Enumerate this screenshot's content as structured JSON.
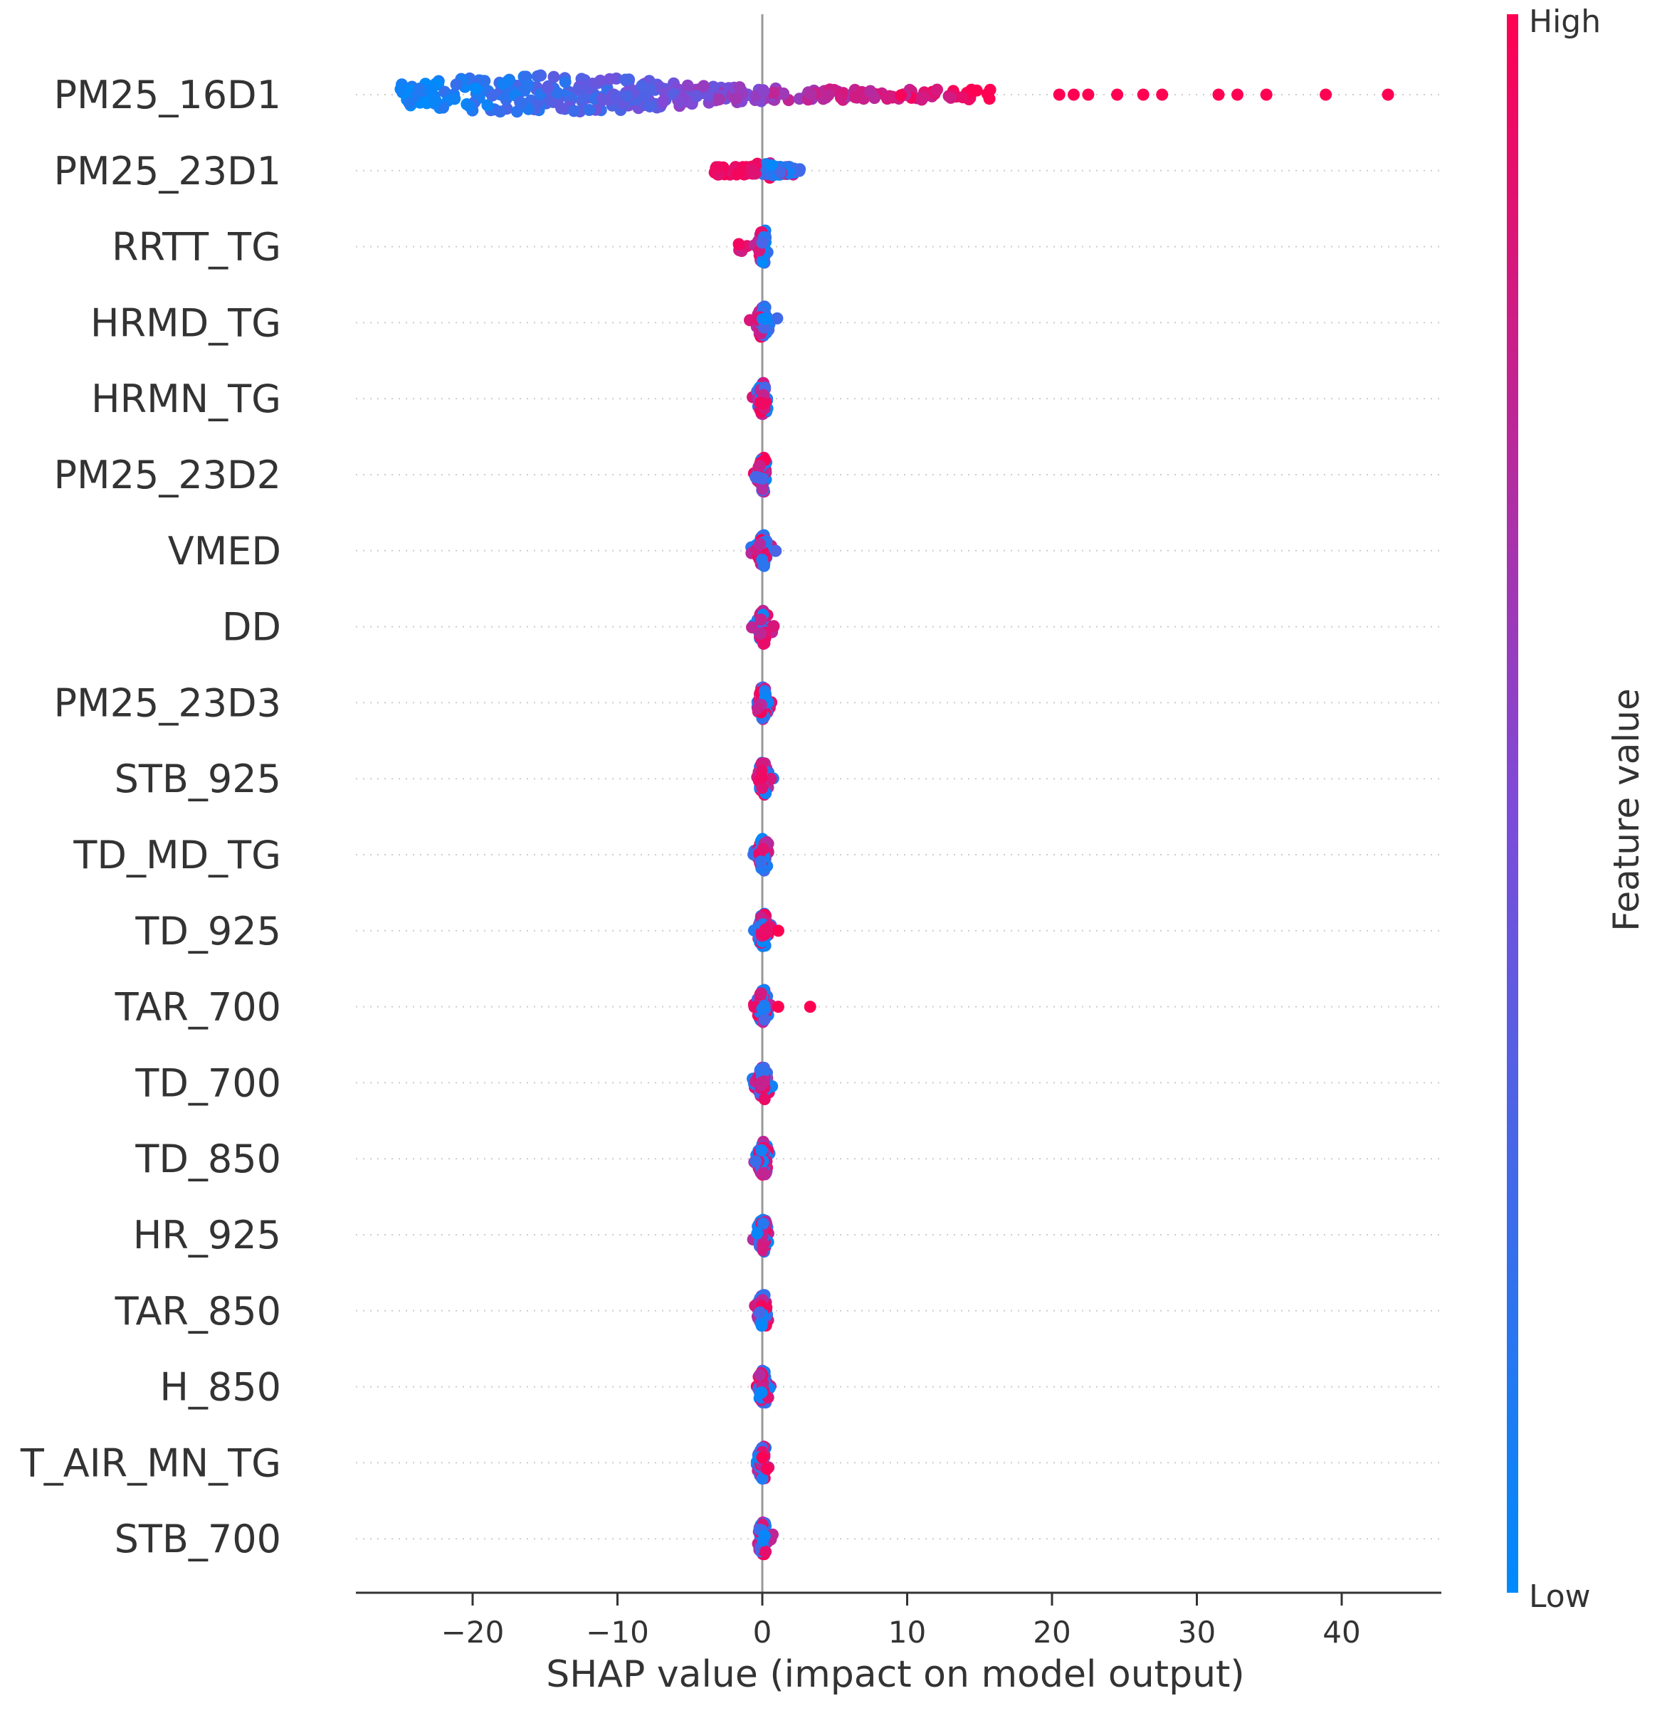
{
  "chart_data": {
    "type": "scatter",
    "subtype": "shap-beeswarm",
    "title": "",
    "xlabel": "SHAP value (impact on model output)",
    "xlim": [
      -28,
      47
    ],
    "x_ticks": [
      -20,
      -10,
      0,
      10,
      20,
      30,
      40
    ],
    "x_tick_labels": [
      "−20",
      "−10",
      "0",
      "10",
      "20",
      "30",
      "40"
    ],
    "features": [
      {
        "name": "PM25_16D1",
        "min": -25,
        "max": 43,
        "density": "wide",
        "low_side": "left",
        "outliers": [
          {
            "x": 20.5,
            "v": 1
          },
          {
            "x": 21.5,
            "v": 1
          },
          {
            "x": 22.5,
            "v": 1
          },
          {
            "x": 24.5,
            "v": 1
          },
          {
            "x": 26.3,
            "v": 1
          },
          {
            "x": 27.6,
            "v": 1
          },
          {
            "x": 31.5,
            "v": 1
          },
          {
            "x": 32.8,
            "v": 1
          },
          {
            "x": 34.8,
            "v": 1
          },
          {
            "x": 38.9,
            "v": 1
          },
          {
            "x": 43.2,
            "v": 1
          }
        ]
      },
      {
        "name": "PM25_23D1",
        "min": -3.5,
        "max": 3.3,
        "density": "medium",
        "low_side": "right",
        "outliers": []
      },
      {
        "name": "RRTT_TG",
        "min": -1.8,
        "max": 0.6,
        "density": "narrow",
        "low_side": "right",
        "outliers": []
      },
      {
        "name": "HRMD_TG",
        "min": -0.9,
        "max": 1.2,
        "density": "narrow",
        "low_side": "right",
        "outliers": []
      },
      {
        "name": "HRMN_TG",
        "min": -0.7,
        "max": 0.6,
        "density": "narrow",
        "low_side": "mixed",
        "outliers": []
      },
      {
        "name": "PM25_23D2",
        "min": -0.7,
        "max": 0.8,
        "density": "narrow",
        "low_side": "mixed",
        "outliers": []
      },
      {
        "name": "VMED",
        "min": -1.0,
        "max": 1.0,
        "density": "narrow",
        "low_side": "mixed",
        "outliers": []
      },
      {
        "name": "DD",
        "min": -0.8,
        "max": 0.9,
        "density": "narrow",
        "low_side": "mixed",
        "outliers": []
      },
      {
        "name": "PM25_23D3",
        "min": -0.7,
        "max": 0.7,
        "density": "narrow",
        "low_side": "mixed",
        "outliers": []
      },
      {
        "name": "STB_925",
        "min": -0.7,
        "max": 0.9,
        "density": "narrow",
        "low_side": "mixed",
        "outliers": []
      },
      {
        "name": "TD_MD_TG",
        "min": -0.7,
        "max": 0.5,
        "density": "narrow",
        "low_side": "mixed",
        "outliers": []
      },
      {
        "name": "TD_925",
        "min": -0.6,
        "max": 0.6,
        "density": "narrow",
        "low_side": "mixed",
        "outliers": [
          {
            "x": 1.1,
            "v": 1
          }
        ]
      },
      {
        "name": "TAR_700",
        "min": -0.6,
        "max": 0.6,
        "density": "narrow",
        "low_side": "mixed",
        "outliers": [
          {
            "x": 1.1,
            "v": 1
          },
          {
            "x": 3.3,
            "v": 1
          }
        ]
      },
      {
        "name": "TD_700",
        "min": -0.8,
        "max": 0.7,
        "density": "narrow",
        "low_side": "mixed",
        "outliers": []
      },
      {
        "name": "TD_850",
        "min": -0.6,
        "max": 0.6,
        "density": "narrow",
        "low_side": "mixed",
        "outliers": []
      },
      {
        "name": "HR_925",
        "min": -1.0,
        "max": 0.5,
        "density": "narrow",
        "low_side": "mixed",
        "outliers": []
      },
      {
        "name": "TAR_850",
        "min": -0.6,
        "max": 0.5,
        "density": "narrow",
        "low_side": "mixed",
        "outliers": []
      },
      {
        "name": "H_850",
        "min": -0.5,
        "max": 0.6,
        "density": "narrow",
        "low_side": "mixed",
        "outliers": []
      },
      {
        "name": "T_AIR_MN_TG",
        "min": -0.5,
        "max": 0.5,
        "density": "narrow",
        "low_side": "mixed",
        "outliers": []
      },
      {
        "name": "STB_700",
        "min": -0.5,
        "max": 0.8,
        "density": "narrow",
        "low_side": "mixed",
        "outliers": []
      }
    ],
    "colorbar": {
      "title": "Feature value",
      "high_label": "High",
      "low_label": "Low",
      "low_color": "#008afb",
      "mid_color": "#7e4bd8",
      "high_color": "#ff0052"
    },
    "grid": "dotted horizontal per feature",
    "legend": "colorbar right"
  }
}
